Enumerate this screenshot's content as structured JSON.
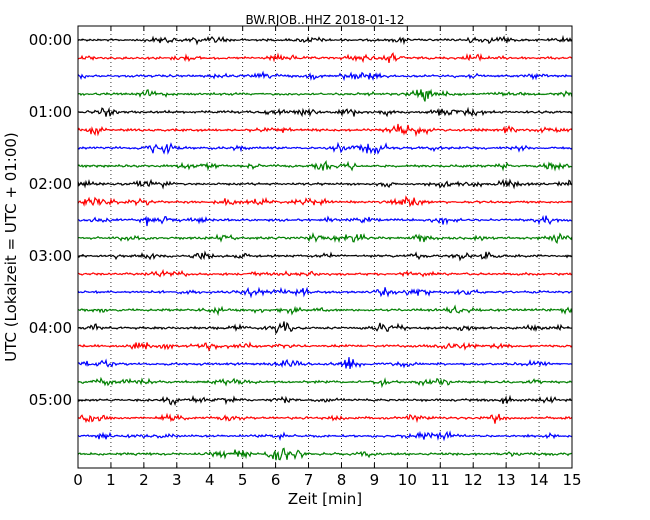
{
  "chart_data": {
    "type": "line",
    "title": "BW.RJOB..HHZ 2018-01-12",
    "xlabel": "Zeit  [min]",
    "ylabel": "UTC (Lokalzeit = UTC + 01:00)",
    "xlim": [
      0,
      15
    ],
    "x_ticks": [
      "0",
      "1",
      "2",
      "3",
      "4",
      "5",
      "6",
      "7",
      "8",
      "9",
      "10",
      "11",
      "12",
      "13",
      "14",
      "15"
    ],
    "y_ticks": [
      "00:00",
      "01:00",
      "02:00",
      "03:00",
      "04:00",
      "05:00"
    ],
    "grid": "vertical dotted at each minute",
    "trace_interval_min": 15,
    "trace_colors": [
      "#000000",
      "#ff0000",
      "#0000ff",
      "#008000"
    ],
    "traces": [
      {
        "start": "00:00",
        "color": "#000000"
      },
      {
        "start": "00:15",
        "color": "#ff0000"
      },
      {
        "start": "00:30",
        "color": "#0000ff"
      },
      {
        "start": "00:45",
        "color": "#008000"
      },
      {
        "start": "01:00",
        "color": "#000000"
      },
      {
        "start": "01:15",
        "color": "#ff0000"
      },
      {
        "start": "01:30",
        "color": "#0000ff"
      },
      {
        "start": "01:45",
        "color": "#008000"
      },
      {
        "start": "02:00",
        "color": "#000000"
      },
      {
        "start": "02:15",
        "color": "#ff0000"
      },
      {
        "start": "02:30",
        "color": "#0000ff"
      },
      {
        "start": "02:45",
        "color": "#008000"
      },
      {
        "start": "03:00",
        "color": "#000000"
      },
      {
        "start": "03:15",
        "color": "#ff0000"
      },
      {
        "start": "03:30",
        "color": "#0000ff"
      },
      {
        "start": "03:45",
        "color": "#008000"
      },
      {
        "start": "04:00",
        "color": "#000000"
      },
      {
        "start": "04:15",
        "color": "#ff0000"
      },
      {
        "start": "04:30",
        "color": "#0000ff"
      },
      {
        "start": "04:45",
        "color": "#008000"
      },
      {
        "start": "05:00",
        "color": "#000000"
      },
      {
        "start": "05:15",
        "color": "#ff0000"
      },
      {
        "start": "05:30",
        "color": "#0000ff"
      },
      {
        "start": "05:45",
        "color": "#008000"
      }
    ]
  }
}
